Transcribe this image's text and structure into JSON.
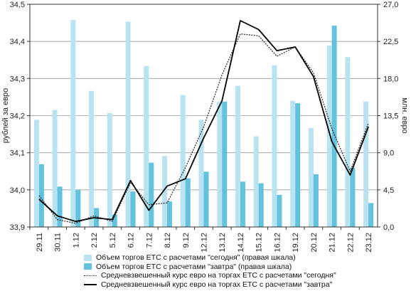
{
  "chart_data": {
    "type": "bar+line",
    "categories": [
      "29.11",
      "30.11",
      "1.12",
      "2.12",
      "5.12",
      "6.12",
      "7.12",
      "8.12",
      "9.12",
      "12.12",
      "13.12",
      "14.12",
      "15.12",
      "16.12",
      "19.12",
      "20.12",
      "21.12",
      "22.12",
      "23.12"
    ],
    "left_axis": {
      "label": "рублей за евро",
      "range": [
        33.9,
        34.5
      ],
      "ticks": [
        "33,9",
        "34,0",
        "34,1",
        "34,2",
        "34,3",
        "34,4",
        "34,5"
      ]
    },
    "right_axis": {
      "label": "млн. евро",
      "range": [
        0,
        27
      ],
      "ticks": [
        "0,0",
        "4,5",
        "9,0",
        "13,5",
        "18,0",
        "22,5",
        "27,0"
      ]
    },
    "bar_series": [
      {
        "name": "Объем торгов ЕТС с расчетами \"сегодня\" (правая шкала)",
        "color": "#b9e3f0",
        "axis": "right",
        "values": [
          13.0,
          14.2,
          25.1,
          16.5,
          13.8,
          24.9,
          19.5,
          8.6,
          16.0,
          13.0,
          15.2,
          17.1,
          11.0,
          19.6,
          15.3,
          12.0,
          22.0,
          20.6,
          15.2
        ]
      },
      {
        "name": "Объем торгов ЕТС с расчетами \"завтра\" (правая шкала)",
        "color": "#63c3dd",
        "axis": "right",
        "values": [
          7.6,
          4.9,
          4.5,
          2.3,
          1.5,
          4.3,
          7.8,
          3.1,
          5.9,
          6.7,
          15.2,
          5.5,
          5.3,
          3.9,
          15.0,
          6.4,
          24.4,
          7.2,
          2.9
        ]
      }
    ],
    "line_series": [
      {
        "name": "Средневзвешенный курс евро на торгах ЕТС с расчетами \"сегодня\"",
        "color": "#222222",
        "style": "dotted",
        "axis": "left",
        "values": [
          33.985,
          33.92,
          33.91,
          33.93,
          33.915,
          34.02,
          33.96,
          33.965,
          34.06,
          34.17,
          34.31,
          34.42,
          34.415,
          34.36,
          34.385,
          34.315,
          34.165,
          34.05,
          34.18
        ]
      },
      {
        "name": "Средневзвешенный курс евро на торгах ЕТС с расчетами \"завтра\"",
        "color": "#000000",
        "style": "solid",
        "axis": "left",
        "values": [
          33.975,
          33.93,
          33.915,
          33.925,
          33.92,
          34.025,
          33.945,
          34.01,
          34.03,
          34.14,
          34.24,
          34.456,
          34.432,
          34.375,
          34.385,
          34.305,
          34.13,
          34.04,
          34.17
        ]
      }
    ],
    "grid": "horizontal",
    "legend_position": "bottom"
  }
}
